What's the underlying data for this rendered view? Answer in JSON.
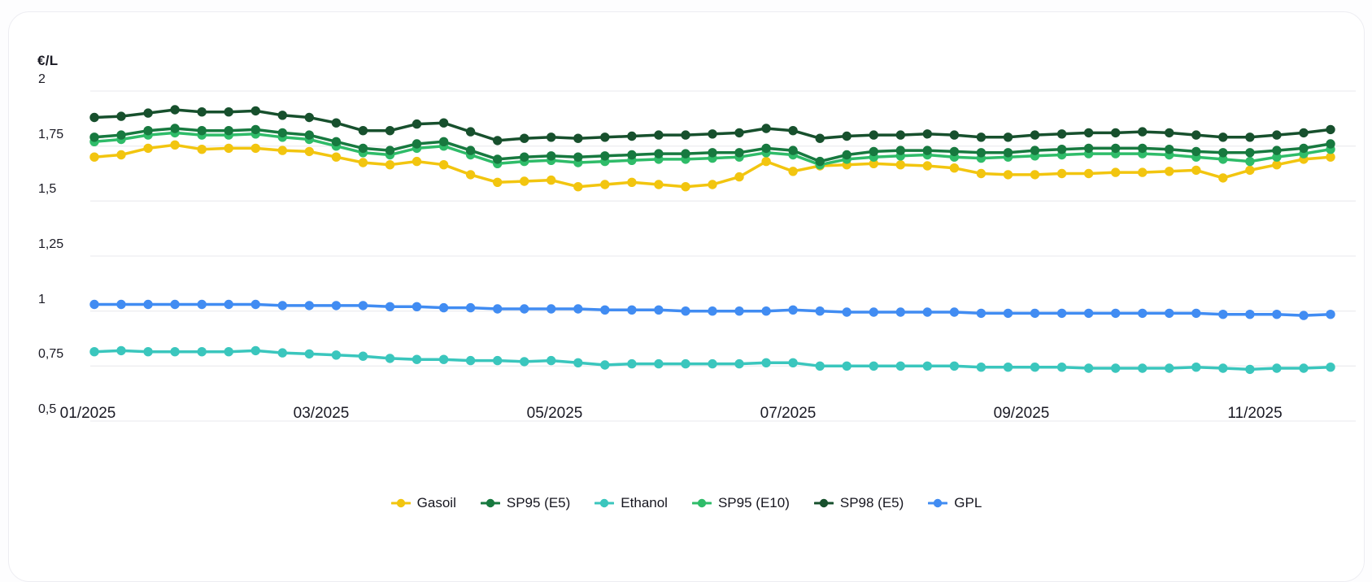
{
  "chart_data": {
    "type": "line",
    "title": "",
    "ylabel": "€/L",
    "xlabel": "",
    "ylim": [
      0.5,
      2.0
    ],
    "grid": "horizontal",
    "legend_position": "bottom",
    "y_tick_labels": [
      "2",
      "1,75",
      "1,5",
      "1,25",
      "1",
      "0,75",
      "0,5"
    ],
    "y_tick_values": [
      2,
      1.75,
      1.5,
      1.25,
      1,
      0.75,
      0.5
    ],
    "x_tick_labels": [
      "01/2025",
      "03/2025",
      "05/2025",
      "07/2025",
      "09/2025",
      "11/2025"
    ],
    "x_dates": [
      "2025-01-01",
      "2025-01-08",
      "2025-01-15",
      "2025-01-22",
      "2025-01-29",
      "2025-02-05",
      "2025-02-12",
      "2025-02-19",
      "2025-02-26",
      "2025-03-05",
      "2025-03-12",
      "2025-03-19",
      "2025-03-26",
      "2025-04-02",
      "2025-04-09",
      "2025-04-16",
      "2025-04-23",
      "2025-04-30",
      "2025-05-07",
      "2025-05-14",
      "2025-05-21",
      "2025-05-28",
      "2025-06-04",
      "2025-06-11",
      "2025-06-18",
      "2025-06-25",
      "2025-07-02",
      "2025-07-09",
      "2025-07-16",
      "2025-07-23",
      "2025-07-30",
      "2025-08-06",
      "2025-08-13",
      "2025-08-20",
      "2025-08-27",
      "2025-09-03",
      "2025-09-10",
      "2025-09-17",
      "2025-09-24",
      "2025-10-01",
      "2025-10-08",
      "2025-10-15",
      "2025-10-22",
      "2025-10-29",
      "2025-11-05",
      "2025-11-12",
      "2025-11-19"
    ],
    "series": [
      {
        "name": "Gasoil",
        "color": "#F2C50F",
        "values": [
          1.7,
          1.71,
          1.74,
          1.755,
          1.735,
          1.74,
          1.74,
          1.73,
          1.725,
          1.7,
          1.675,
          1.665,
          1.68,
          1.665,
          1.62,
          1.585,
          1.59,
          1.595,
          1.565,
          1.575,
          1.585,
          1.575,
          1.565,
          1.575,
          1.61,
          1.68,
          1.635,
          1.66,
          1.665,
          1.67,
          1.665,
          1.66,
          1.65,
          1.625,
          1.62,
          1.62,
          1.625,
          1.625,
          1.63,
          1.63,
          1.635,
          1.64,
          1.605,
          1.64,
          1.665,
          1.69,
          1.7
        ]
      },
      {
        "name": "SP95 (E5)",
        "color": "#17793F",
        "values": [
          1.79,
          1.8,
          1.82,
          1.83,
          1.82,
          1.82,
          1.825,
          1.81,
          1.8,
          1.77,
          1.74,
          1.73,
          1.76,
          1.77,
          1.73,
          1.69,
          1.7,
          1.705,
          1.7,
          1.705,
          1.71,
          1.715,
          1.715,
          1.72,
          1.72,
          1.74,
          1.73,
          1.68,
          1.71,
          1.725,
          1.73,
          1.73,
          1.725,
          1.72,
          1.72,
          1.73,
          1.735,
          1.74,
          1.74,
          1.74,
          1.735,
          1.725,
          1.72,
          1.72,
          1.73,
          1.74,
          1.76
        ]
      },
      {
        "name": "Ethanol",
        "color": "#3AC6BD",
        "values": [
          0.815,
          0.82,
          0.815,
          0.815,
          0.815,
          0.815,
          0.82,
          0.81,
          0.805,
          0.8,
          0.795,
          0.785,
          0.78,
          0.78,
          0.775,
          0.775,
          0.77,
          0.775,
          0.765,
          0.755,
          0.76,
          0.76,
          0.76,
          0.76,
          0.76,
          0.765,
          0.765,
          0.75,
          0.75,
          0.75,
          0.75,
          0.75,
          0.75,
          0.745,
          0.745,
          0.745,
          0.745,
          0.74,
          0.74,
          0.74,
          0.74,
          0.745,
          0.74,
          0.735,
          0.74,
          0.74,
          0.745
        ]
      },
      {
        "name": "SP95 (E10)",
        "color": "#2FBC69",
        "values": [
          1.77,
          1.78,
          1.8,
          1.81,
          1.8,
          1.8,
          1.805,
          1.79,
          1.78,
          1.75,
          1.72,
          1.71,
          1.74,
          1.75,
          1.71,
          1.67,
          1.68,
          1.685,
          1.675,
          1.68,
          1.685,
          1.69,
          1.69,
          1.695,
          1.7,
          1.72,
          1.71,
          1.665,
          1.69,
          1.7,
          1.705,
          1.71,
          1.7,
          1.695,
          1.7,
          1.705,
          1.71,
          1.715,
          1.715,
          1.715,
          1.71,
          1.7,
          1.69,
          1.68,
          1.7,
          1.715,
          1.735
        ]
      },
      {
        "name": "SP98 (E5)",
        "color": "#17502D",
        "values": [
          1.88,
          1.885,
          1.9,
          1.915,
          1.905,
          1.905,
          1.91,
          1.89,
          1.88,
          1.855,
          1.82,
          1.82,
          1.85,
          1.855,
          1.815,
          1.775,
          1.785,
          1.79,
          1.785,
          1.79,
          1.795,
          1.8,
          1.8,
          1.805,
          1.81,
          1.83,
          1.82,
          1.785,
          1.795,
          1.8,
          1.8,
          1.805,
          1.8,
          1.79,
          1.79,
          1.8,
          1.805,
          1.81,
          1.81,
          1.815,
          1.81,
          1.8,
          1.79,
          1.79,
          1.8,
          1.81,
          1.825
        ]
      },
      {
        "name": "GPL",
        "color": "#418CF2",
        "values": [
          1.03,
          1.03,
          1.03,
          1.03,
          1.03,
          1.03,
          1.03,
          1.025,
          1.025,
          1.025,
          1.025,
          1.02,
          1.02,
          1.015,
          1.015,
          1.01,
          1.01,
          1.01,
          1.01,
          1.005,
          1.005,
          1.005,
          1.0,
          1.0,
          1.0,
          1.0,
          1.005,
          1.0,
          0.995,
          0.995,
          0.995,
          0.995,
          0.995,
          0.99,
          0.99,
          0.99,
          0.99,
          0.99,
          0.99,
          0.99,
          0.99,
          0.99,
          0.985,
          0.985,
          0.985,
          0.98,
          0.985
        ]
      }
    ]
  },
  "colors": {
    "background": "#fdfdfe",
    "card_background": "#ffffff",
    "card_border": "#ededf2",
    "grid_line": "#eeeef0",
    "text": "#1a1a24"
  }
}
